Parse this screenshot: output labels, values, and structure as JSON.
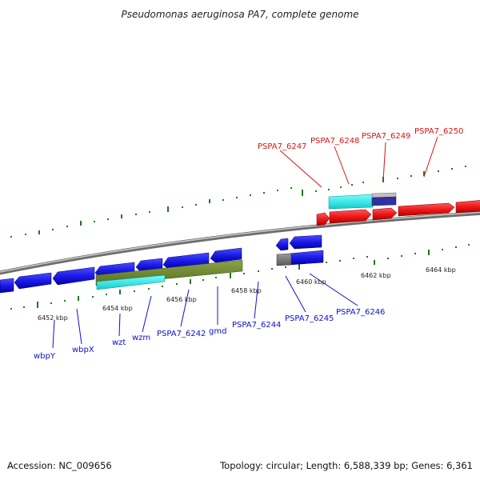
{
  "title": "Pseudomonas aeruginosa PA7, complete genome",
  "footer": {
    "accession": "Accession: NC_009656",
    "topology": "Topology: circular; Length: 6,588,339 bp; Genes: 6,361"
  },
  "colors": {
    "backbone": "#8a8a8a",
    "tick": "#1c7a1c",
    "forward_gene": "#e81818",
    "reverse_gene": "#1414d8",
    "label_forward": "#d81414",
    "label_reverse": "#1010c8"
  },
  "position_labels": [
    {
      "text": "6452 kbp",
      "kbp": 6452
    },
    {
      "text": "6454 kbp",
      "kbp": 6454
    },
    {
      "text": "6456 kbp",
      "kbp": 6456
    },
    {
      "text": "6458 kbp",
      "kbp": 6458
    },
    {
      "text": "6460 kbp",
      "kbp": 6460
    },
    {
      "text": "6462 kbp",
      "kbp": 6462
    },
    {
      "text": "6464 kbp",
      "kbp": 6464
    }
  ],
  "gene_labels_reverse": [
    "wbpY",
    "wbpX",
    "wzt",
    "wzm",
    "PSPA7_6242",
    "gmd",
    "PSPA7_6244",
    "PSPA7_6245",
    "PSPA7_6246"
  ],
  "gene_labels_forward": [
    "PSPA7_6247",
    "PSPA7_6248",
    "PSPA7_6249",
    "PSPA7_6250"
  ]
}
